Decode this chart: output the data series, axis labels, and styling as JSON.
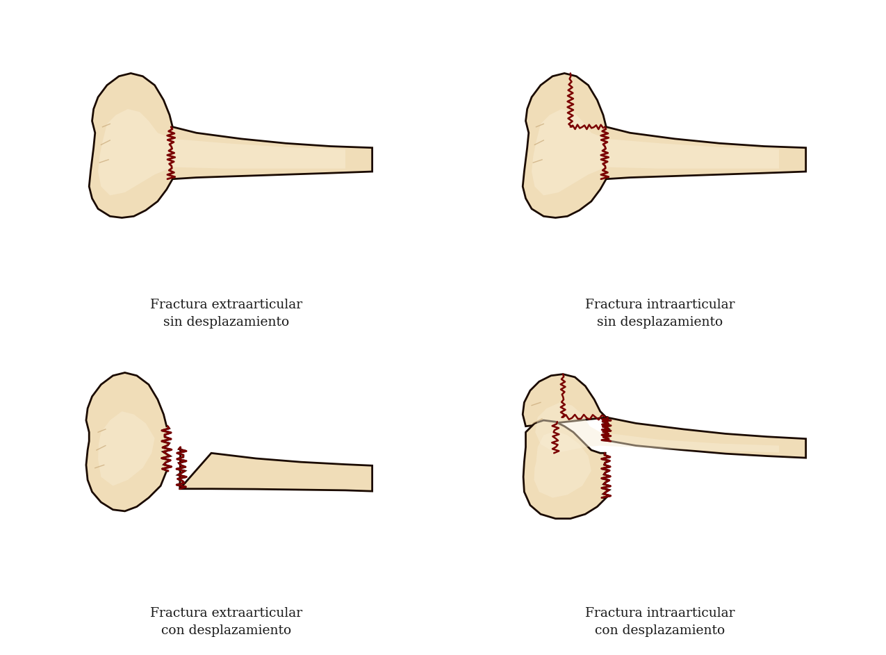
{
  "background_color": "#ffffff",
  "bone_fill": "#f0ddb8",
  "bone_fill2": "#e8d4a8",
  "bone_stroke": "#1a0a00",
  "fracture_color": "#7a0000",
  "text_color": "#1a1a1a",
  "shade_color": "#c8a878",
  "labels": [
    [
      "Fractura extraarticular",
      "sin desplazamiento"
    ],
    [
      "Fractura intraarticular",
      "sin desplazamiento"
    ],
    [
      "Fractura extraarticular",
      "con desplazamiento"
    ],
    [
      "Fractura intraarticular",
      "con desplazamiento"
    ]
  ],
  "label_fontsize": 13.5,
  "figsize": [
    12.75,
    9.43
  ],
  "dpi": 100
}
